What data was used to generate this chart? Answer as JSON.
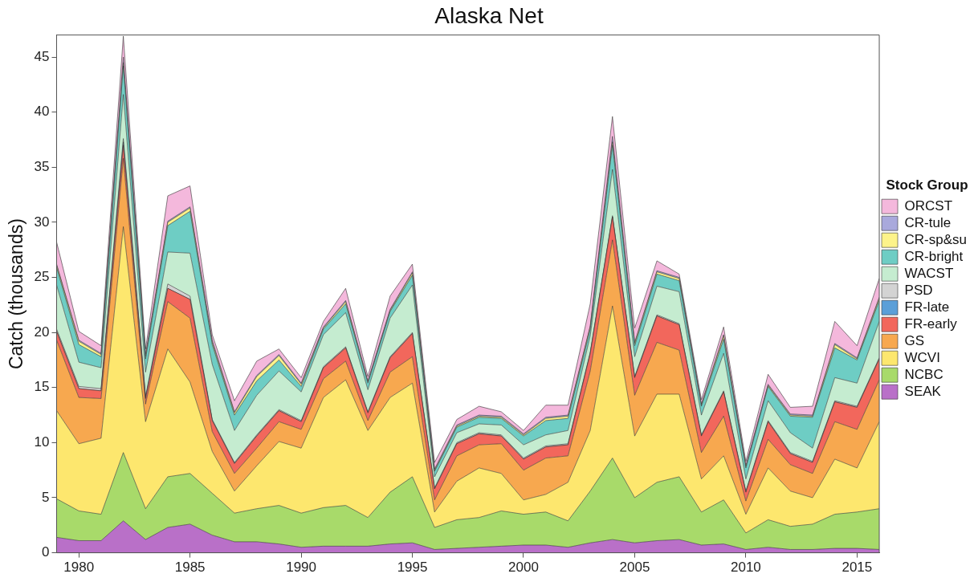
{
  "chart_data": {
    "type": "area",
    "title": "Alaska Net",
    "ylabel": "Catch (thousands)",
    "legend_title": "Stock Group",
    "legend": "right",
    "grid": false,
    "stacked": true,
    "x": [
      1979,
      1980,
      1981,
      1982,
      1983,
      1984,
      1985,
      1986,
      1987,
      1988,
      1989,
      1990,
      1991,
      1992,
      1993,
      1994,
      1995,
      1996,
      1997,
      1998,
      1999,
      2000,
      2001,
      2002,
      2003,
      2004,
      2005,
      2006,
      2007,
      2008,
      2009,
      2010,
      2011,
      2012,
      2013,
      2014,
      2015,
      2016
    ],
    "xlim": [
      1979,
      2016
    ],
    "xticks": [
      1980,
      1985,
      1990,
      1995,
      2000,
      2005,
      2010,
      2015
    ],
    "ylim": [
      0,
      47
    ],
    "yticks": [
      0,
      5,
      10,
      15,
      20,
      25,
      30,
      35,
      40,
      45
    ],
    "series": [
      {
        "name": "SEAK",
        "color": "#b970c8",
        "values": [
          1.4,
          1.1,
          1.1,
          2.9,
          1.2,
          2.3,
          2.6,
          1.6,
          1.0,
          1.0,
          0.8,
          0.5,
          0.6,
          0.6,
          0.6,
          0.8,
          0.9,
          0.3,
          0.4,
          0.5,
          0.6,
          0.7,
          0.7,
          0.5,
          0.9,
          1.2,
          0.9,
          1.1,
          1.2,
          0.7,
          0.8,
          0.3,
          0.5,
          0.3,
          0.3,
          0.4,
          0.4,
          0.3
        ]
      },
      {
        "name": "NCBC",
        "color": "#a8da6a",
        "values": [
          3.5,
          2.7,
          2.4,
          6.2,
          2.8,
          4.6,
          4.6,
          3.8,
          2.6,
          3.0,
          3.5,
          3.1,
          3.5,
          3.7,
          2.6,
          4.7,
          6.0,
          2.0,
          2.6,
          2.7,
          3.2,
          2.8,
          3.0,
          2.4,
          4.7,
          7.4,
          4.1,
          5.3,
          5.7,
          3.0,
          4.0,
          1.5,
          2.5,
          2.1,
          2.3,
          3.1,
          3.3,
          3.7
        ]
      },
      {
        "name": "WCVI",
        "color": "#fde76e",
        "values": [
          8.0,
          6.1,
          6.9,
          20.5,
          7.9,
          11.6,
          8.3,
          3.8,
          2.0,
          3.9,
          5.8,
          5.9,
          10.0,
          11.4,
          7.9,
          8.6,
          8.5,
          1.4,
          3.5,
          4.5,
          3.4,
          1.3,
          1.6,
          3.5,
          5.5,
          13.8,
          5.6,
          8.0,
          7.5,
          3.0,
          4.0,
          1.7,
          4.7,
          3.2,
          2.4,
          5.0,
          4.0,
          7.9
        ]
      },
      {
        "name": "GS",
        "color": "#f7a84f",
        "values": [
          6.4,
          4.2,
          3.6,
          6.2,
          1.6,
          4.3,
          5.8,
          1.8,
          1.6,
          1.6,
          1.8,
          1.7,
          1.7,
          1.7,
          0.9,
          2.3,
          2.4,
          1.1,
          2.3,
          2.1,
          2.7,
          2.7,
          3.3,
          2.4,
          5.4,
          6.0,
          3.7,
          4.7,
          4.0,
          2.4,
          3.6,
          1.2,
          2.6,
          2.4,
          2.2,
          3.4,
          3.5,
          3.8
        ]
      },
      {
        "name": "FR-early",
        "color": "#f2675c",
        "values": [
          0.8,
          0.8,
          0.7,
          1.2,
          0.5,
          1.2,
          1.7,
          1.0,
          0.9,
          1.1,
          1.0,
          0.7,
          1.0,
          1.2,
          0.7,
          1.3,
          2.1,
          1.0,
          1.1,
          1.0,
          0.7,
          1.0,
          1.0,
          1.0,
          1.6,
          2.1,
          1.6,
          2.4,
          2.3,
          1.5,
          2.2,
          0.8,
          1.6,
          1.0,
          1.0,
          1.8,
          2.0,
          1.9
        ]
      },
      {
        "name": "FR-late",
        "color": "#5b9fd8",
        "values": [
          0,
          0,
          0,
          0.3,
          0.1,
          0,
          0,
          0,
          0,
          0,
          0,
          0,
          0,
          0,
          0,
          0,
          0,
          0,
          0,
          0,
          0,
          0,
          0,
          0,
          0,
          0,
          0,
          0,
          0,
          0,
          0,
          0,
          0,
          0,
          0,
          0,
          0,
          0
        ]
      },
      {
        "name": "PSD",
        "color": "#d3d3d3",
        "values": [
          0.2,
          0.2,
          0.2,
          0.3,
          0.1,
          0.4,
          0.3,
          0.1,
          0.1,
          0.1,
          0.1,
          0.1,
          0.1,
          0.1,
          0.1,
          0.1,
          0.1,
          0.1,
          0.1,
          0.1,
          0.1,
          0.1,
          0.1,
          0.1,
          0.1,
          0.1,
          0.1,
          0.1,
          0.1,
          0.1,
          0.1,
          0.1,
          0.1,
          0.1,
          0.1,
          0.1,
          0.1,
          0.1
        ]
      },
      {
        "name": "WACST",
        "color": "#c5ecd0",
        "values": [
          4.0,
          2.2,
          1.9,
          4.0,
          2.2,
          2.9,
          3.9,
          5.0,
          2.9,
          3.6,
          3.5,
          2.6,
          2.9,
          3.1,
          2.0,
          3.5,
          4.3,
          1.0,
          0.9,
          0.8,
          0.9,
          1.2,
          1.0,
          1.2,
          1.5,
          4.2,
          1.8,
          2.6,
          2.9,
          1.8,
          3.4,
          1.1,
          1.8,
          1.8,
          1.2,
          2.1,
          2.1,
          3.3
        ]
      },
      {
        "name": "CR-bright",
        "color": "#6ecdc4",
        "values": [
          1.6,
          1.6,
          1.0,
          2.6,
          1.2,
          2.4,
          3.8,
          1.8,
          1.4,
          1.3,
          1.0,
          0.5,
          0.5,
          0.8,
          0.6,
          0.6,
          0.9,
          0.5,
          0.5,
          0.6,
          0.6,
          0.8,
          1.3,
          1.1,
          0.6,
          2.2,
          1.0,
          1.1,
          1.0,
          0.8,
          1.3,
          1.0,
          1.3,
          1.5,
          2.8,
          2.7,
          2.1,
          1.9
        ]
      },
      {
        "name": "CR-sp&su",
        "color": "#fdf38a",
        "values": [
          0.2,
          0.3,
          0.2,
          0.3,
          0.2,
          0.3,
          0.3,
          0.2,
          0.2,
          0.4,
          0.4,
          0.2,
          0.1,
          0.2,
          0.1,
          0.1,
          0.2,
          0.1,
          0.1,
          0.1,
          0.1,
          0.1,
          0.2,
          0.2,
          0.2,
          0.3,
          0.2,
          0.2,
          0.2,
          0.1,
          0.3,
          0.1,
          0.1,
          0.1,
          0.1,
          0.3,
          0.1,
          0.2
        ]
      },
      {
        "name": "CR-tule",
        "color": "#a9a9dc",
        "values": [
          0.1,
          0.1,
          0.1,
          0.5,
          0.2,
          0.1,
          0.1,
          0.2,
          0.1,
          0.1,
          0.1,
          0.1,
          0.1,
          0.1,
          0.1,
          0.1,
          0.1,
          0.1,
          0.1,
          0.1,
          0.1,
          0.1,
          0.1,
          0.1,
          0.1,
          0.5,
          0.1,
          0.1,
          0.1,
          0.1,
          0.1,
          0.1,
          0.1,
          0.1,
          0.1,
          0.1,
          0.1,
          0.1
        ]
      },
      {
        "name": "ORCST",
        "color": "#f4b8dc",
        "values": [
          2.0,
          0.8,
          0.7,
          1.9,
          0.5,
          2.3,
          1.9,
          0.5,
          1.0,
          1.3,
          0.5,
          0.5,
          0.5,
          1.1,
          0.4,
          1.2,
          0.7,
          0.6,
          0.5,
          0.8,
          0.4,
          0.3,
          1.1,
          0.9,
          2.0,
          1.8,
          1.3,
          0.9,
          0.3,
          0.4,
          0.7,
          0.4,
          0.9,
          0.6,
          0.8,
          2.0,
          1.1,
          1.7
        ]
      }
    ]
  }
}
